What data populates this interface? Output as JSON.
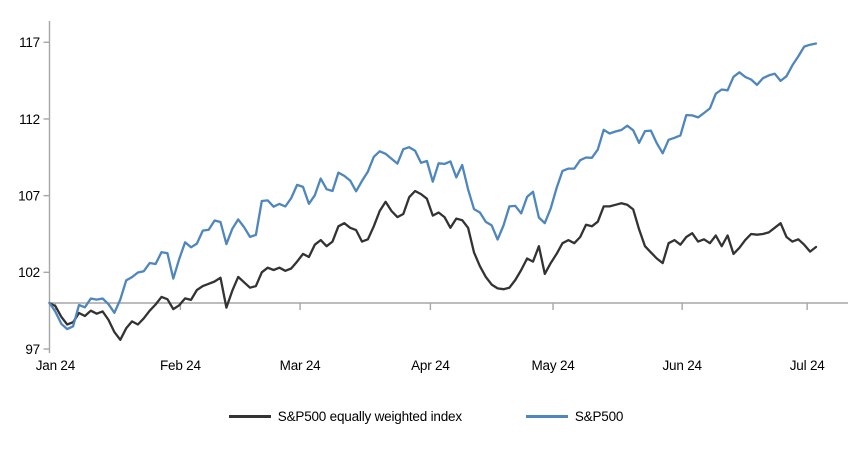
{
  "chart_data": {
    "type": "line",
    "title": "",
    "x_axis": {
      "tick_labels": [
        "Jan 24",
        "Feb 24",
        "Mar 24",
        "Apr 24",
        "May 24",
        "Jun 24",
        "Jul 24"
      ],
      "tick_day_positions": [
        1.0,
        22.2,
        42.5,
        64.6,
        85.4,
        107.3,
        128.5
      ]
    },
    "y_axis": {
      "ticks": [
        97,
        102,
        107,
        112,
        117
      ],
      "min": 97,
      "max": 117
    },
    "baseline_value": 100,
    "axis_color": "#a6a6a6",
    "grid": false,
    "legend_position": "bottom",
    "series": [
      {
        "name": "S&P500 equally weighted index",
        "color": "#333333",
        "values": [
          100.0,
          99.8,
          99.1,
          98.6,
          98.75,
          99.35,
          99.15,
          99.5,
          99.3,
          99.45,
          98.9,
          98.1,
          97.6,
          98.35,
          98.8,
          98.6,
          99.0,
          99.5,
          99.9,
          100.4,
          100.25,
          99.6,
          99.85,
          100.3,
          100.2,
          100.85,
          101.1,
          101.25,
          101.4,
          101.65,
          99.7,
          100.8,
          101.7,
          101.35,
          101.0,
          101.1,
          102.0,
          102.3,
          102.15,
          102.3,
          102.1,
          102.25,
          102.7,
          103.2,
          103.0,
          103.8,
          104.1,
          103.7,
          104.0,
          105.0,
          105.2,
          104.9,
          104.75,
          104.0,
          104.15,
          105.0,
          106.0,
          106.6,
          106.0,
          105.6,
          105.8,
          106.9,
          107.3,
          107.1,
          106.8,
          105.7,
          105.9,
          105.6,
          104.9,
          105.5,
          105.4,
          104.9,
          103.3,
          102.4,
          101.7,
          101.2,
          100.95,
          100.9,
          101.0,
          101.5,
          102.15,
          102.9,
          102.7,
          103.7,
          101.9,
          102.6,
          103.2,
          103.9,
          104.1,
          103.9,
          104.3,
          105.1,
          105.0,
          105.3,
          106.3,
          106.3,
          106.4,
          106.5,
          106.4,
          106.1,
          104.8,
          103.7,
          103.3,
          102.9,
          102.6,
          103.9,
          104.1,
          103.8,
          104.3,
          104.55,
          104.0,
          104.15,
          103.9,
          104.4,
          103.7,
          104.4,
          103.2,
          103.6,
          104.1,
          104.5,
          104.45,
          104.5,
          104.6,
          104.9,
          105.2,
          104.3,
          104.0,
          104.15,
          103.8,
          103.35,
          103.65
        ]
      },
      {
        "name": "S&P500",
        "color": "#4e86bd",
        "values": [
          100.0,
          99.43,
          98.64,
          98.3,
          98.48,
          99.87,
          99.72,
          100.29,
          100.22,
          100.29,
          99.92,
          99.36,
          100.23,
          101.47,
          101.69,
          101.99,
          102.07,
          102.61,
          102.54,
          103.31,
          103.25,
          101.59,
          102.86,
          103.96,
          103.63,
          103.87,
          104.72,
          104.78,
          105.38,
          105.28,
          103.84,
          104.84,
          105.45,
          104.94,
          104.31,
          104.44,
          106.65,
          106.69,
          106.28,
          106.46,
          106.29,
          106.84,
          107.7,
          107.57,
          106.47,
          107.02,
          108.12,
          107.42,
          107.3,
          108.5,
          108.29,
          107.98,
          107.28,
          107.96,
          108.57,
          109.53,
          109.89,
          109.73,
          109.4,
          109.09,
          110.03,
          110.16,
          109.93,
          109.14,
          109.26,
          107.91,
          109.11,
          109.07,
          109.23,
          108.19,
          109.0,
          107.41,
          106.12,
          105.9,
          105.29,
          105.06,
          104.14,
          105.05,
          106.3,
          106.33,
          105.84,
          106.92,
          107.26,
          105.57,
          105.21,
          106.17,
          107.5,
          108.61,
          108.76,
          108.76,
          109.31,
          109.49,
          109.47,
          110.0,
          111.29,
          111.05,
          111.18,
          111.28,
          111.56,
          111.26,
          110.44,
          111.21,
          111.24,
          110.42,
          109.76,
          110.64,
          110.77,
          110.93,
          112.25,
          112.23,
          112.1,
          112.39,
          112.69,
          113.65,
          113.92,
          113.87,
          114.75,
          115.04,
          114.74,
          114.57,
          114.22,
          114.66,
          114.84,
          114.95,
          114.48,
          114.79,
          115.5,
          116.08,
          116.72,
          116.84,
          116.92
        ]
      }
    ]
  },
  "legend": {
    "items": [
      {
        "label": "S&P500 equally weighted index"
      },
      {
        "label": "S&P500"
      }
    ]
  }
}
